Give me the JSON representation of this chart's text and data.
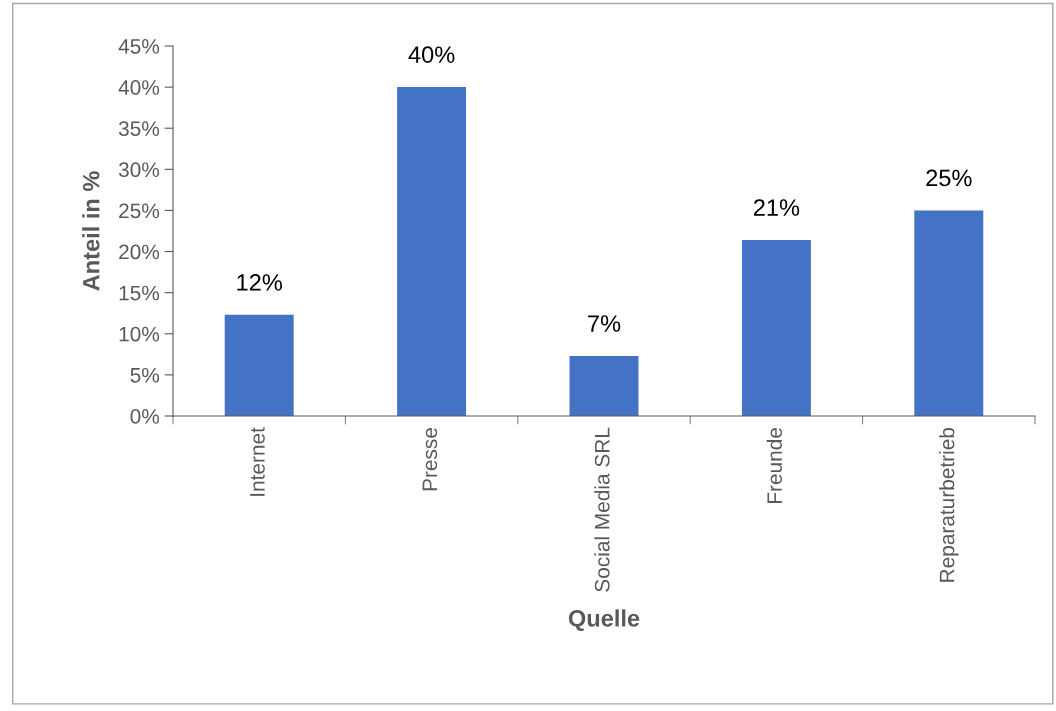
{
  "chart_data": {
    "type": "bar",
    "xlabel": "Quelle",
    "ylabel": "Anteil in %",
    "categories": [
      "Internet",
      "Presse",
      "Social Media SRL",
      "Freunde",
      "Reparaturbetrieb"
    ],
    "values": [
      12.3,
      40.0,
      7.3,
      21.4,
      25.0
    ],
    "value_labels": [
      "12%",
      "40%",
      "7%",
      "21%",
      "25%"
    ],
    "color": "#4472c4",
    "ylim": [
      0,
      45
    ],
    "yticks": [
      {
        "value": 0,
        "label": "0%"
      },
      {
        "value": 5,
        "label": "5%"
      },
      {
        "value": 10,
        "label": "10%"
      },
      {
        "value": 15,
        "label": "15%"
      },
      {
        "value": 20,
        "label": "20%"
      },
      {
        "value": 25,
        "label": "25%"
      },
      {
        "value": 30,
        "label": "30%"
      },
      {
        "value": 35,
        "label": "35%"
      },
      {
        "value": 40,
        "label": "40%"
      },
      {
        "value": 45,
        "label": "45%"
      }
    ],
    "grid": false
  }
}
